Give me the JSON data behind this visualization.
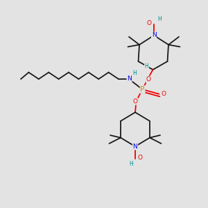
{
  "bg_color": "#e3e3e3",
  "bond_color": "#1a1a1a",
  "bond_width": 1.3,
  "atom_colors": {
    "N": "#0000ee",
    "O": "#ee0000",
    "P": "#cc8800",
    "H": "#008888",
    "C": "#1a1a1a"
  },
  "font_size": 6.5,
  "fig_size": [
    3.0,
    3.0
  ],
  "dpi": 100
}
